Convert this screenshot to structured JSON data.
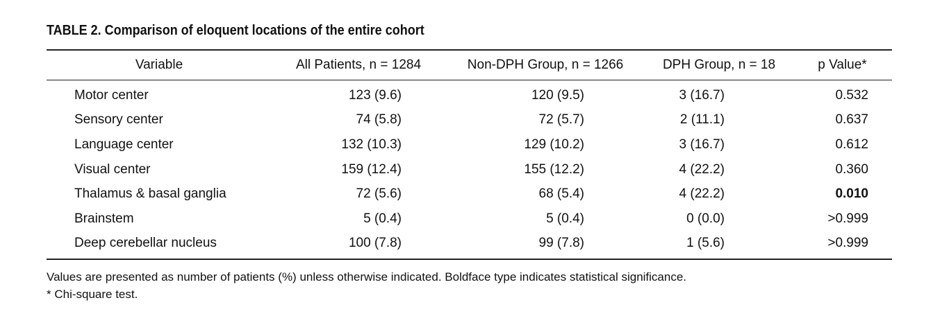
{
  "title": "TABLE 2. Comparison of eloquent locations of the entire cohort",
  "columns": [
    "Variable",
    "All Patients, n = 1284",
    "Non-DPH Group, n = 1266",
    "DPH Group, n = 18",
    "p Value*"
  ],
  "rows": [
    {
      "variable": "Motor center",
      "all": "123 (9.6)",
      "non_dph": "120 (9.5)",
      "dph": "3 (16.7)",
      "p": "0.532",
      "significant": false
    },
    {
      "variable": "Sensory center",
      "all": "74 (5.8)",
      "non_dph": "72 (5.7)",
      "dph": "2 (11.1)",
      "p": "0.637",
      "significant": false
    },
    {
      "variable": "Language center",
      "all": "132 (10.3)",
      "non_dph": "129 (10.2)",
      "dph": "3 (16.7)",
      "p": "0.612",
      "significant": false
    },
    {
      "variable": "Visual center",
      "all": "159 (12.4)",
      "non_dph": "155 (12.2)",
      "dph": "4 (22.2)",
      "p": "0.360",
      "significant": false
    },
    {
      "variable": "Thalamus & basal ganglia",
      "all": "72 (5.6)",
      "non_dph": "68 (5.4)",
      "dph": "4 (22.2)",
      "p": "0.010",
      "significant": true
    },
    {
      "variable": "Brainstem",
      "all": "5 (0.4)",
      "non_dph": "5 (0.4)",
      "dph": "0 (0.0)",
      "p": ">0.999",
      "significant": false
    },
    {
      "variable": "Deep cerebellar nucleus",
      "all": "100 (7.8)",
      "non_dph": "99 (7.8)",
      "dph": "1 (5.6)",
      "p": ">0.999",
      "significant": false
    }
  ],
  "footnotes": [
    "Values are presented as number of patients (%) unless otherwise indicated. Boldface type indicates statistical significance.",
    "* Chi-square test."
  ]
}
